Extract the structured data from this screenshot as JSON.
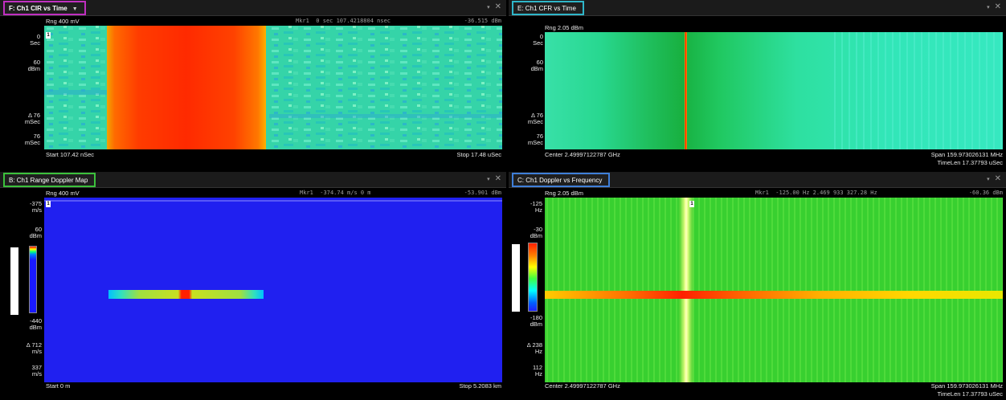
{
  "panes": {
    "f": {
      "tab": "F: Ch1 CIR vs Time",
      "range": "Rng 400 mV",
      "marker_label": "Mkr1",
      "marker_pos": "0 sec  107.4218804 nsec",
      "marker_value": "-36.515 dBm",
      "ylabels": [
        "0\nSec",
        "60\ndBm",
        "Δ 76\nmSec",
        "76\nmSec"
      ],
      "start": "Start 107.42 nSec",
      "stop": "Stop 17.48 uSec",
      "marker_num": "1"
    },
    "e": {
      "tab": "E: Ch1 CFR vs Time",
      "range": "Rng 2.05 dBm",
      "ylabels": [
        "0\nSec",
        "60\ndBm",
        "Δ 76\nmSec",
        "76\nmSec"
      ],
      "center": "Center 2.49997122787 GHz",
      "span": "Span 159.973026131 MHz",
      "timelen": "TimeLen 17.37793 uSec"
    },
    "b": {
      "tab": "B: Ch1 Range Doppler Map",
      "range": "Rng 400 mV",
      "marker_label": "Mkr1",
      "marker_pos": "-374.74 m/s  0 m",
      "marker_value": "-53.901 dBm",
      "ylabels": [
        "-375\nm/s",
        "60\ndBm",
        "-440\ndBm",
        "Δ 712\nm/s",
        "337\nm/s"
      ],
      "start": "Start 0  m",
      "stop": "Stop 5.2083 km",
      "marker_num": "1"
    },
    "c": {
      "tab": "C: Ch1 Doppler vs Frequency",
      "range": "Rng 2.05 dBm",
      "marker_label": "Mkr1",
      "marker_pos": "-125.00 Hz  2.469 933 327.28 Hz",
      "marker_value": "-60.36  dBm",
      "ylabels": [
        "-125\nHz",
        "-30\ndBm",
        "-180\ndBm",
        "Δ 238\nHz",
        "112\nHz"
      ],
      "center": "Center 2.49997122787 GHz",
      "span": "Span 159.973026131 MHz",
      "timelen": "TimeLen 17.37793 uSec",
      "marker_num": "1"
    }
  },
  "icons": {
    "pin": "dropdown-pin-icon",
    "close": "close-icon",
    "caret": "caret-down-icon"
  },
  "colors": {
    "tab_f": "#c02fc0",
    "tab_e": "#2fb6c9",
    "tab_b": "#3cc13c",
    "tab_c": "#3f7fd9"
  }
}
